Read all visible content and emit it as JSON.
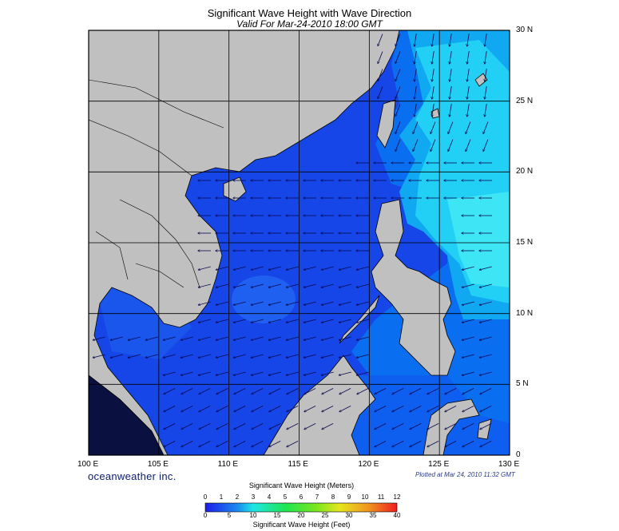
{
  "title": "Significant Wave Height with Wave Direction",
  "subtitle": "Valid For Mar-24-2010 18:00 GMT",
  "credit": "oceanweather inc.",
  "plotted": "Plotted at Mar 24, 2010 11:32 GMT",
  "lon_labels": [
    "100 E",
    "105 E",
    "110 E",
    "115 E",
    "120 E",
    "125 E",
    "130 E"
  ],
  "lat_labels": [
    "0",
    "5 N",
    "10 N",
    "15 N",
    "20 N",
    "25 N",
    "30 N"
  ],
  "legend": {
    "meters_title": "Significant Wave Height (Meters)",
    "feet_title": "Significant Wave Height (Feet)",
    "meters_ticks": [
      "0",
      "1",
      "2",
      "3",
      "4",
      "5",
      "6",
      "7",
      "8",
      "9",
      "10",
      "11",
      "12"
    ],
    "feet_ticks": [
      "0",
      "5",
      "10",
      "15",
      "20",
      "25",
      "30",
      "35",
      "40"
    ]
  },
  "colors": {
    "land": "#c0c0c0",
    "sea_low": "#1646e8",
    "sea_mid": "#0a7cf5",
    "sea_high": "#1ed2f5",
    "sea_peak": "#3ee6f5",
    "grid": "#000000"
  }
}
